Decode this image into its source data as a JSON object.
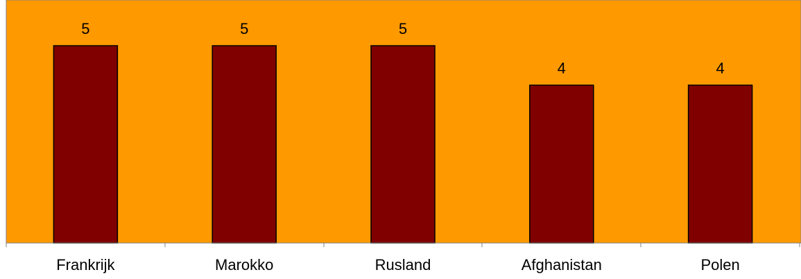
{
  "chart_data": {
    "type": "bar",
    "categories": [
      "Frankrijk",
      "Marokko",
      "Rusland",
      "Afghanistan",
      "Polen"
    ],
    "values": [
      5,
      5,
      5,
      4,
      4
    ],
    "data_labels": [
      "5",
      "5",
      "5",
      "4",
      "4"
    ],
    "title": "",
    "xlabel": "",
    "ylabel": "",
    "ylim": [
      0,
      5
    ],
    "grid": false,
    "legend": "none",
    "colors": {
      "plot_background": "#ff9900",
      "bar_fill": "#800000",
      "bar_stroke": "#000000",
      "axis": "#808080"
    }
  }
}
